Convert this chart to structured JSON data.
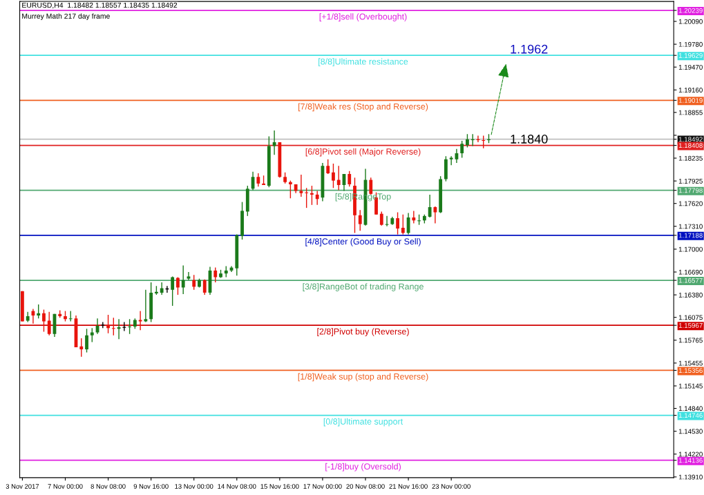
{
  "chart_data": {
    "type": "candlestick",
    "title": "EURUSD,H4  1.18482 1.18557 1.18435 1.18492",
    "subtitle": "Murrey Math 217 day frame",
    "categories": [
      "3 Nov 2017",
      null,
      null,
      null,
      null,
      null,
      null,
      null,
      "7 Nov 00:00",
      null,
      null,
      null,
      null,
      null,
      null,
      null,
      "8 Nov 08:00",
      null,
      null,
      null,
      null,
      null,
      null,
      null,
      "9 Nov 16:00",
      null,
      null,
      null,
      null,
      null,
      null,
      null,
      "13 Nov 00:00",
      null,
      null,
      null,
      null,
      null,
      null,
      null,
      "14 Nov 08:00",
      null,
      null,
      null,
      null,
      null,
      null,
      null,
      "15 Nov 16:00",
      null,
      null,
      null,
      null,
      null,
      null,
      null,
      "17 Nov 00:00",
      null,
      null,
      null,
      null,
      null,
      null,
      null,
      "20 Nov 08:00",
      null,
      null,
      null,
      null,
      null,
      null,
      null,
      "21 Nov 16:00",
      null,
      null,
      null,
      null,
      null,
      null,
      null,
      "23 Nov 00:00",
      null,
      null,
      null,
      null,
      null,
      null,
      null,
      null,
      null,
      null,
      null,
      null,
      null,
      null,
      null,
      null,
      null,
      null,
      null,
      null,
      null,
      null,
      null,
      null,
      null,
      null,
      null,
      null,
      null,
      null,
      null,
      null,
      null,
      null,
      null,
      null,
      null,
      null,
      null,
      null,
      null
    ],
    "ohlc": [
      [
        1.1643,
        1.1643,
        1.1602,
        1.1602
      ],
      [
        1.1603,
        1.1615,
        1.1601,
        1.1609
      ],
      [
        1.1616,
        1.1619,
        1.1599,
        1.161
      ],
      [
        1.161,
        1.1625,
        1.1606,
        1.1613
      ],
      [
        1.1613,
        1.1618,
        1.1588,
        1.1602
      ],
      [
        1.1603,
        1.1615,
        1.1583,
        1.1585
      ],
      [
        1.1585,
        1.1612,
        1.1581,
        1.1612
      ],
      [
        1.1612,
        1.1617,
        1.1607,
        1.1609
      ],
      [
        1.1609,
        1.1616,
        1.1602,
        1.1605
      ],
      [
        1.1605,
        1.1616,
        1.1602,
        1.1606
      ],
      [
        1.1606,
        1.161,
        1.1567,
        1.1567
      ],
      [
        1.1568,
        1.1579,
        1.1554,
        1.1564
      ],
      [
        1.1564,
        1.1592,
        1.156,
        1.1583
      ],
      [
        1.1583,
        1.1593,
        1.1574,
        1.1587
      ],
      [
        1.1587,
        1.1606,
        1.1585,
        1.1596
      ],
      [
        1.1597,
        1.1601,
        1.1593,
        1.1597
      ],
      [
        1.1597,
        1.1611,
        1.1586,
        1.1593
      ],
      [
        1.1593,
        1.1607,
        1.1583,
        1.1592
      ],
      [
        1.1592,
        1.1605,
        1.1578,
        1.1594
      ],
      [
        1.1594,
        1.1601,
        1.1589,
        1.1594
      ],
      [
        1.1594,
        1.1605,
        1.1585,
        1.1595
      ],
      [
        1.1595,
        1.1606,
        1.1592,
        1.1604
      ],
      [
        1.1604,
        1.1616,
        1.159,
        1.1602
      ],
      [
        1.1602,
        1.1645,
        1.1601,
        1.1605
      ],
      [
        1.1605,
        1.1655,
        1.1601,
        1.1641
      ],
      [
        1.164,
        1.165,
        1.1638,
        1.1642
      ],
      [
        1.1641,
        1.1655,
        1.1638,
        1.1647
      ],
      [
        1.1646,
        1.165,
        1.1641,
        1.1646
      ],
      [
        1.1645,
        1.1663,
        1.1623,
        1.1662
      ],
      [
        1.1661,
        1.1662,
        1.1638,
        1.1648
      ],
      [
        1.1648,
        1.1678,
        1.1639,
        1.1658
      ],
      [
        1.166,
        1.1669,
        1.1658,
        1.1663
      ],
      [
        1.1658,
        1.1665,
        1.1645,
        1.1649
      ],
      [
        1.1649,
        1.166,
        1.1648,
        1.1658
      ],
      [
        1.1658,
        1.1659,
        1.1638,
        1.1641
      ],
      [
        1.1641,
        1.1676,
        1.1638,
        1.1671
      ],
      [
        1.1671,
        1.1675,
        1.1655,
        1.1662
      ],
      [
        1.1662,
        1.1672,
        1.1661,
        1.1667
      ],
      [
        1.1667,
        1.1677,
        1.1662,
        1.1671
      ],
      [
        1.1671,
        1.1677,
        1.1669,
        1.1675
      ],
      [
        1.1674,
        1.172,
        1.1664,
        1.1719
      ],
      [
        1.1718,
        1.1764,
        1.1713,
        1.1752
      ],
      [
        1.1751,
        1.1786,
        1.1745,
        1.1782
      ],
      [
        1.1782,
        1.1805,
        1.178,
        1.1798
      ],
      [
        1.1798,
        1.1803,
        1.1785,
        1.1789
      ],
      [
        1.1789,
        1.18,
        1.1787,
        1.1787
      ],
      [
        1.1786,
        1.1853,
        1.1784,
        1.184
      ],
      [
        1.184,
        1.1861,
        1.1828,
        1.1845
      ],
      [
        1.1845,
        1.1845,
        1.1797,
        1.1798
      ],
      [
        1.1798,
        1.1804,
        1.1789,
        1.1791
      ],
      [
        1.1791,
        1.1793,
        1.1769,
        1.1788
      ],
      [
        1.1788,
        1.1788,
        1.1776,
        1.1779
      ],
      [
        1.1779,
        1.1801,
        1.1771,
        1.1776
      ],
      [
        1.1777,
        1.1783,
        1.1756,
        1.1776
      ],
      [
        1.1776,
        1.1786,
        1.176,
        1.1774
      ],
      [
        1.1774,
        1.1779,
        1.176,
        1.1768
      ],
      [
        1.177,
        1.1817,
        1.1765,
        1.1813
      ],
      [
        1.1813,
        1.1822,
        1.1802,
        1.1803
      ],
      [
        1.1804,
        1.1816,
        1.1783,
        1.1793
      ],
      [
        1.1794,
        1.1813,
        1.178,
        1.1787
      ],
      [
        1.1787,
        1.1802,
        1.1779,
        1.1802
      ],
      [
        1.1802,
        1.1806,
        1.1785,
        1.1788
      ],
      [
        1.1786,
        1.1797,
        1.1722,
        1.1746
      ],
      [
        1.1746,
        1.1753,
        1.1725,
        1.1734
      ],
      [
        1.1733,
        1.1809,
        1.1732,
        1.1794
      ],
      [
        1.1794,
        1.1797,
        1.1774,
        1.1775
      ],
      [
        1.177,
        1.1777,
        1.1747,
        1.1747
      ],
      [
        1.1748,
        1.1751,
        1.1732,
        1.1733
      ],
      [
        1.1733,
        1.1745,
        1.1731,
        1.1734
      ],
      [
        1.1734,
        1.1744,
        1.1733,
        1.1742
      ],
      [
        1.1742,
        1.175,
        1.172,
        1.1728
      ],
      [
        1.1729,
        1.1747,
        1.172,
        1.1722
      ],
      [
        1.1722,
        1.1749,
        1.172,
        1.1743
      ],
      [
        1.1743,
        1.1752,
        1.1735,
        1.1739
      ],
      [
        1.1738,
        1.1747,
        1.1733,
        1.1739
      ],
      [
        1.1739,
        1.1747,
        1.1735,
        1.1745
      ],
      [
        1.1744,
        1.1774,
        1.1743,
        1.1757
      ],
      [
        1.1757,
        1.1758,
        1.1735,
        1.175
      ],
      [
        1.175,
        1.1799,
        1.1749,
        1.1795
      ],
      [
        1.1795,
        1.1826,
        1.1792,
        1.1822
      ],
      [
        1.1822,
        1.1826,
        1.1814,
        1.1824
      ],
      [
        1.1822,
        1.1836,
        1.1817,
        1.183
      ],
      [
        1.183,
        1.1847,
        1.1824,
        1.1843
      ],
      [
        1.1841,
        1.1856,
        1.1838,
        1.1849
      ],
      [
        1.1848,
        1.1856,
        1.184,
        1.1849
      ],
      [
        1.1849,
        1.1854,
        1.1845,
        1.1848
      ],
      [
        1.1848,
        1.1854,
        1.1837,
        1.1847
      ],
      [
        1.1848,
        1.1856,
        1.1844,
        1.1849
      ],
      null,
      null,
      null,
      null,
      null,
      null,
      null,
      null,
      null,
      null,
      null,
      null,
      null,
      null,
      null,
      null,
      null,
      null,
      null,
      null,
      null,
      null,
      null,
      null,
      null,
      null,
      null,
      null,
      null,
      null,
      null,
      null,
      null,
      null
    ],
    "colors": [
      "#e8140c",
      "#1a7a1a",
      "#e8140c",
      "#1a7a1a",
      "#e8140c",
      "#e8140c",
      "#1a7a1a",
      "#e8140c",
      "#e8140c",
      "#1a7a1a",
      "#e8140c",
      "#e8140c",
      "#1a7a1a",
      "#1a7a1a",
      "#1a7a1a",
      "#000000",
      "#e8140c",
      "#e8140c",
      "#1a7a1a",
      "#000000",
      "#1a7a1a",
      "#1a7a1a",
      "#e8140c",
      "#1a7a1a",
      "#1a7a1a",
      "#1a7a1a",
      "#1a7a1a",
      "#000000",
      "#1a7a1a",
      "#e8140c",
      "#1a7a1a",
      "#1a7a1a",
      "#e8140c",
      "#1a7a1a",
      "#e8140c",
      "#1a7a1a",
      "#e8140c",
      "#1a7a1a",
      "#1a7a1a",
      "#1a7a1a",
      "#1a7a1a",
      "#1a7a1a",
      "#1a7a1a",
      "#1a7a1a",
      "#e8140c",
      "#e8140c",
      "#1a7a1a",
      "#1a7a1a",
      "#e8140c",
      "#e8140c",
      "#e8140c",
      "#e8140c",
      "#e8140c",
      "#e8140c",
      "#e8140c",
      "#e8140c",
      "#1a7a1a",
      "#e8140c",
      "#e8140c",
      "#e8140c",
      "#1a7a1a",
      "#e8140c",
      "#e8140c",
      "#e8140c",
      "#1a7a1a",
      "#e8140c",
      "#e8140c",
      "#e8140c",
      "#1a7a1a",
      "#1a7a1a",
      "#e8140c",
      "#e8140c",
      "#1a7a1a",
      "#e8140c",
      "#1a7a1a",
      "#1a7a1a",
      "#1a7a1a",
      "#e8140c",
      "#1a7a1a",
      "#1a7a1a",
      "#1a7a1a",
      "#1a7a1a",
      "#1a7a1a",
      "#1a7a1a",
      "#1a7a1a",
      "#e8140c",
      "#e8140c",
      "#1a7a1a",
      null,
      null,
      null,
      null,
      null,
      null,
      null,
      null,
      null,
      null,
      null,
      null,
      null,
      null,
      null,
      null,
      null,
      null,
      null,
      null,
      null,
      null,
      null,
      null,
      null,
      null,
      null,
      null,
      null,
      null,
      null,
      null,
      null,
      null
    ],
    "ylim": [
      1.139,
      1.2036
    ],
    "yticks": [
      {
        "value": 1.20239,
        "label": "1.20239"
      },
      {
        "value": 1.19629,
        "label": "1.19629"
      },
      {
        "value": 1.19019,
        "label": "1.19019"
      },
      {
        "value": 1.18492,
        "label": "1.18492"
      },
      {
        "value": 1.18408,
        "label": "1.18408"
      },
      {
        "value": 1.17798,
        "label": "1.17798"
      },
      {
        "value": 1.17188,
        "label": "1.17188"
      },
      {
        "value": 1.16577,
        "label": "1.16577"
      },
      {
        "value": 1.15967,
        "label": "1.15967"
      },
      {
        "value": 1.15356,
        "label": "1.15356"
      },
      {
        "value": 1.14746,
        "label": "1.14746"
      },
      {
        "value": 1.14136,
        "label": "1.14136"
      },
      {
        "value": 1.2009,
        "label": "1.20090"
      },
      {
        "value": 1.1978,
        "label": "1.19780"
      },
      {
        "value": 1.1947,
        "label": "1.19470"
      },
      {
        "value": 1.1916,
        "label": "1.19160"
      },
      {
        "value": 1.18855,
        "label": "1.18855"
      },
      {
        "value": 1.18545,
        "label": null
      },
      {
        "value": 1.18235,
        "label": "1.18235"
      },
      {
        "value": 1.17925,
        "label": "1.17925"
      },
      {
        "value": 1.1762,
        "label": "1.17620"
      },
      {
        "value": 1.1731,
        "label": "1.17310"
      },
      {
        "value": 1.17,
        "label": "1.17000"
      },
      {
        "value": 1.1669,
        "label": "1.16690"
      },
      {
        "value": 1.1638,
        "label": "1.16380"
      },
      {
        "value": 1.16075,
        "label": "1.16075"
      },
      {
        "value": 1.15765,
        "label": "1.15765"
      },
      {
        "value": 1.15455,
        "label": "1.15455"
      },
      {
        "value": 1.15145,
        "label": "1.15145"
      },
      {
        "value": 1.1484,
        "label": "1.14840"
      },
      {
        "value": 1.1453,
        "label": "1.14530"
      },
      {
        "value": 1.1422,
        "label": "1.14220"
      },
      {
        "value": 1.1391,
        "label": "1.13910"
      }
    ],
    "ref_lines": [
      {
        "axis": "y",
        "value": 1.20239,
        "label": "[+1/8]sell (Overbought)",
        "color": "#e020e0"
      },
      {
        "axis": "y",
        "value": 1.19629,
        "label": "[8/8]Ultimate resistance",
        "color": "#40e0e0"
      },
      {
        "axis": "y",
        "value": 1.19019,
        "label": "[7/8]Weak res (Stop and Reverse)",
        "color": "#f06020"
      },
      {
        "axis": "y",
        "value": 1.18492,
        "label": null,
        "color": "#c0c0c0"
      },
      {
        "axis": "y",
        "value": 1.18408,
        "label": "[6/8]Pivot sell (Major Reverse)",
        "color": "#e02020"
      },
      {
        "axis": "y",
        "value": 1.17798,
        "label": "[5/8]RangeTop",
        "color": "#50a870"
      },
      {
        "axis": "y",
        "value": 1.17188,
        "label": "[4/8]Center (Good Buy or Sell)",
        "color": "#0010c0"
      },
      {
        "axis": "y",
        "value": 1.16577,
        "label": "[3/8]RangeBot of trading Range",
        "color": "#50a870"
      },
      {
        "axis": "y",
        "value": 1.15967,
        "label": "[2/8]Pivot buy (Reverse)",
        "color": "#d00000"
      },
      {
        "axis": "y",
        "value": 1.15356,
        "label": "[1/8]Weak sup (stop and Reverse)",
        "color": "#f06020"
      },
      {
        "axis": "y",
        "value": 1.14746,
        "label": "[0/8]Ultimate support",
        "color": "#40e0e0"
      },
      {
        "axis": "y",
        "value": 1.14136,
        "label": "[-1/8]buy (Oversold)",
        "color": "#e020e0"
      }
    ],
    "annotations": [
      {
        "text": "1.1962",
        "y": 1.1962
      },
      {
        "text": "1.1840",
        "y": 1.184
      }
    ],
    "grid": false,
    "legend": false
  }
}
